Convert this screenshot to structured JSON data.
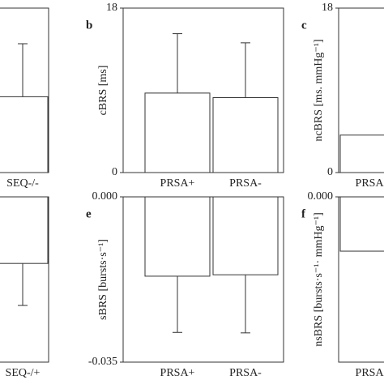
{
  "charts": [
    {
      "type": "bar",
      "categories": [
        "SEQ-/-"
      ],
      "values": [
        8.3
      ],
      "errors": [
        5.8
      ],
      "ylim": [
        0,
        18
      ],
      "yticks": []
    },
    {
      "type": "bar",
      "label": "b",
      "ylabel": "cBRS [ms]",
      "categories": [
        "PRSA+",
        "PRSA-"
      ],
      "values": [
        8.7,
        8.2
      ],
      "errors": [
        6.5,
        6.0
      ],
      "ylim": [
        0,
        18
      ],
      "yticks": [
        0,
        18
      ]
    },
    {
      "type": "bar",
      "label": "c",
      "ylabel": "ncBRS [ms. mmHg⁻¹]",
      "categories": [
        "PRSA+"
      ],
      "values": [
        4.1
      ],
      "ylim": [
        0,
        18
      ],
      "yticks": [
        0,
        18
      ]
    },
    {
      "type": "bar",
      "categories": [
        "SEQ-/+"
      ],
      "values": [
        -0.0141
      ],
      "errors": [
        0.0089
      ],
      "ylim": [
        -0.035,
        0
      ],
      "yticks": []
    },
    {
      "type": "bar",
      "label": "e",
      "ylabel": "sBRS [bursts·s⁻¹]",
      "categories": [
        "PRSA+",
        "PRSA-"
      ],
      "values": [
        -0.0168,
        -0.0165
      ],
      "errors": [
        0.0119,
        0.0123
      ],
      "ylim": [
        -0.035,
        0
      ],
      "yticks": [
        {
          "value": -0.035,
          "label": "-0.035"
        },
        {
          "value": 0,
          "label": "0.000"
        }
      ]
    },
    {
      "type": "bar",
      "label": "f",
      "ylabel": "nsBRS [bursts·s⁻¹· mmHg⁻¹]",
      "categories": [
        "PRSA+"
      ],
      "values": [
        -0.0115
      ],
      "ylim": [
        -0.035,
        0
      ],
      "yticks": [
        {
          "value": 0,
          "label": "0.000"
        }
      ]
    }
  ]
}
